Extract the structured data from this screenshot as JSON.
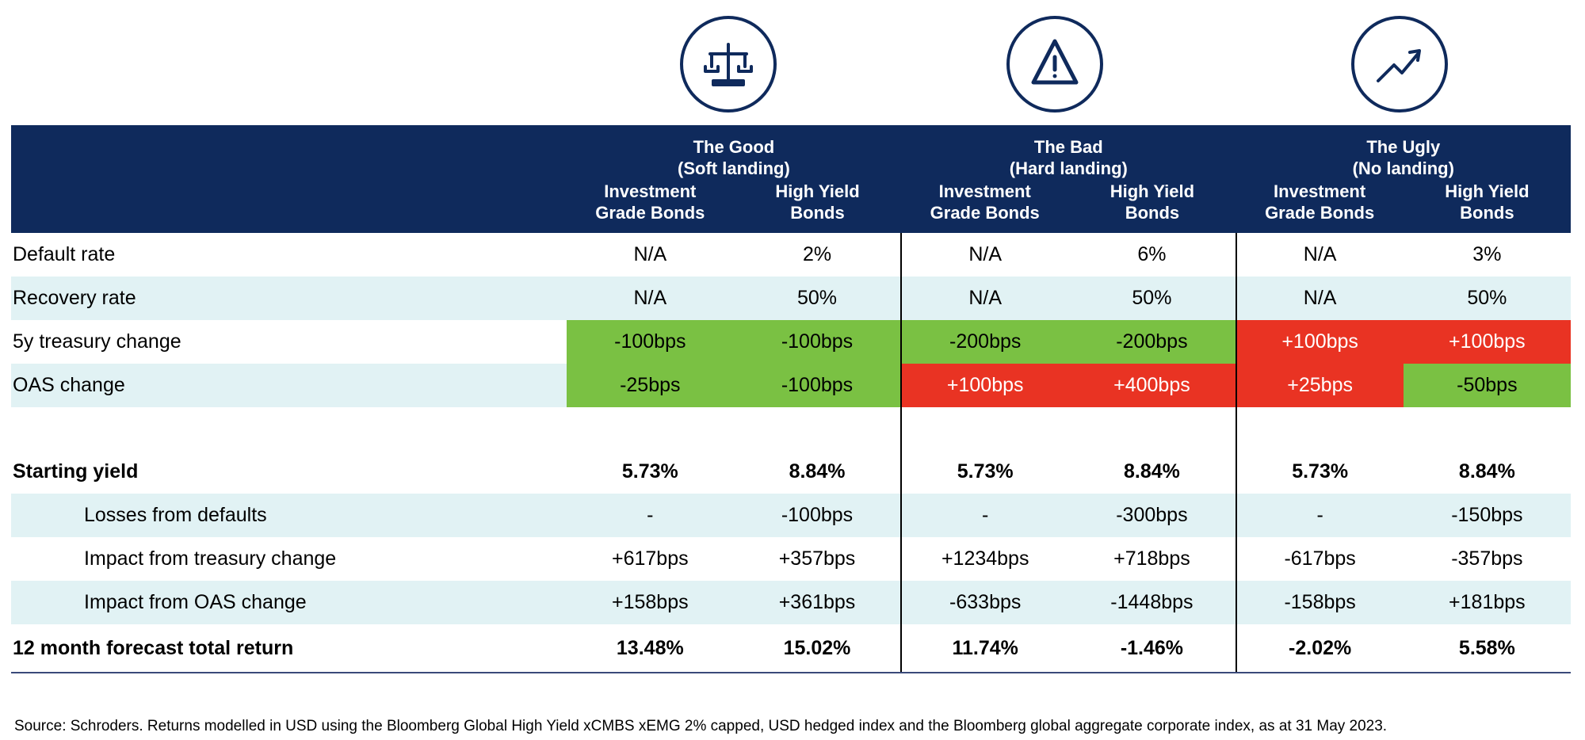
{
  "icons": [
    "balance-scale-icon",
    "warning-triangle-icon",
    "trend-up-arrow-icon"
  ],
  "colors": {
    "header_bg": "#0f2a5c",
    "band_bg": "#e1f2f4",
    "positive": "#7ac143",
    "negative": "#e93323"
  },
  "scenarios": [
    {
      "title": "The Good",
      "subtitle": "(Soft landing)"
    },
    {
      "title": "The Bad",
      "subtitle": "(Hard landing)"
    },
    {
      "title": "The Ugly",
      "subtitle": "(No landing)"
    }
  ],
  "columns": {
    "ig_line1": "Investment",
    "ig_line2": "Grade Bonds",
    "hy_line1": "High Yield",
    "hy_line2": "Bonds"
  },
  "rows": [
    {
      "label": "Default rate",
      "values": [
        "N/A",
        "2%",
        "N/A",
        "6%",
        "N/A",
        "3%"
      ]
    },
    {
      "label": "Recovery rate",
      "values": [
        "N/A",
        "50%",
        "N/A",
        "50%",
        "N/A",
        "50%"
      ]
    },
    {
      "label": "5y treasury change",
      "values": [
        "-100bps",
        "-100bps",
        "-200bps",
        "-200bps",
        "+100bps",
        "+100bps"
      ]
    },
    {
      "label": "OAS change",
      "values": [
        "-25bps",
        "-100bps",
        "+100bps",
        "+400bps",
        "+25bps",
        "-50bps"
      ]
    },
    {
      "label": "Starting yield",
      "values": [
        "5.73%",
        "8.84%",
        "5.73%",
        "8.84%",
        "5.73%",
        "8.84%"
      ]
    },
    {
      "label": "Losses from defaults",
      "values": [
        "-",
        "-100bps",
        "-",
        "-300bps",
        "-",
        "-150bps"
      ]
    },
    {
      "label": "Impact from treasury change",
      "values": [
        "+617bps",
        "+357bps",
        "+1234bps",
        "+718bps",
        "-617bps",
        "-357bps"
      ]
    },
    {
      "label": "Impact from OAS change",
      "values": [
        "+158bps",
        "+361bps",
        "-633bps",
        "-1448bps",
        "-158bps",
        "+181bps"
      ]
    },
    {
      "label": "12 month forecast total return",
      "values": [
        "13.48%",
        "15.02%",
        "11.74%",
        "-1.46%",
        "-2.02%",
        "5.58%"
      ]
    }
  ],
  "source": "Source: Schroders. Returns modelled in USD using the Bloomberg Global High Yield xCMBS xEMG 2% capped, USD hedged index and the Bloomberg global aggregate corporate index, as at 31 May 2023."
}
